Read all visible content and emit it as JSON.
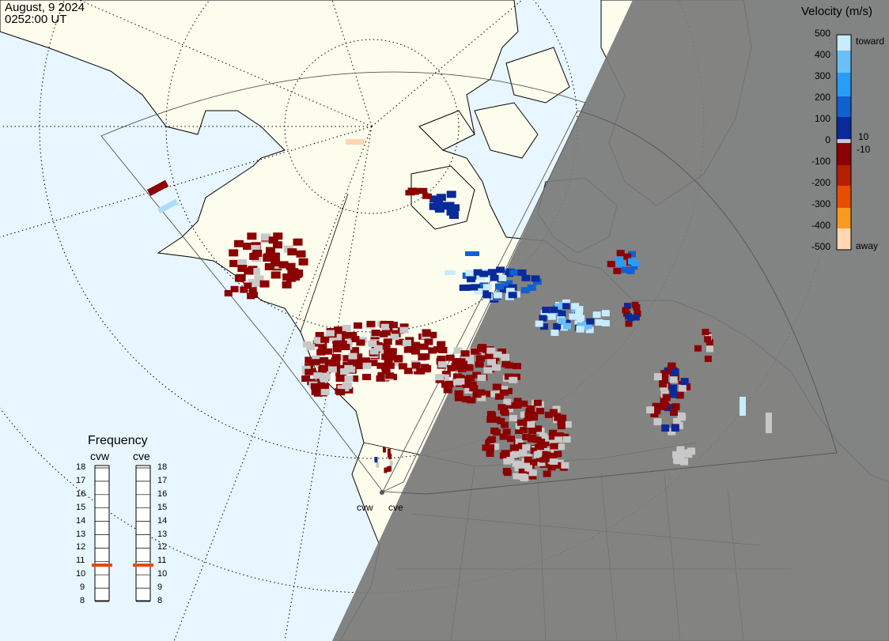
{
  "header": {
    "date": "August, 9 2024",
    "time": "0252:00 UT"
  },
  "velocity_scale": {
    "title": "Velocity (m/s)",
    "ticks": [
      "500",
      "400",
      "300",
      "200",
      "100",
      "0",
      "-100",
      "-200",
      "-300",
      "-400",
      "-500"
    ],
    "inner_ticks": [
      "10",
      "-10"
    ],
    "toward_label": "toward",
    "away_label": "away",
    "colors": {
      "toward_light": "#c8ecff",
      "toward_mid": "#2a9df4",
      "toward_dark": "#0a2a9a",
      "near_zero": "#c8c8c8",
      "away_dark": "#8b0000",
      "away_mid": "#e84d00",
      "away_light": "#ffd7b0",
      "ground_scatter": "#c8c8c8"
    }
  },
  "frequency_panel": {
    "title": "Frequency",
    "radars": [
      {
        "name": "cvw",
        "frequency_mhz": 11
      },
      {
        "name": "cve",
        "frequency_mhz": 11
      }
    ],
    "ticks": [
      "18",
      "17",
      "16",
      "15",
      "14",
      "13",
      "12",
      "11",
      "10",
      "9",
      "8"
    ]
  },
  "map": {
    "radar_site_labels": [
      "cvw",
      "cve"
    ],
    "colors": {
      "ocean": "#e8f6ff",
      "land": "#fdfdee",
      "night": "#808080",
      "coast": "#000000"
    }
  }
}
